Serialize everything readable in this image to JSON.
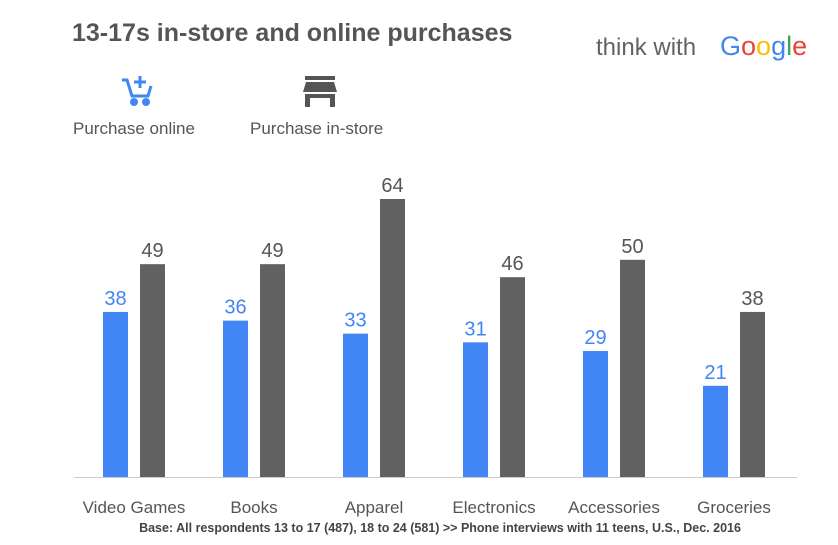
{
  "brand": [
    "think with",
    "Google"
  ],
  "chart_data": {
    "type": "bar",
    "title": "13-17s in-store and online purchases",
    "categories": [
      "Video Games",
      "Books",
      "Apparel",
      "Electronics",
      "Accessories",
      "Groceries"
    ],
    "series": [
      {
        "name": "Purchase online",
        "color": "#4285f4",
        "values": [
          38,
          36,
          33,
          31,
          29,
          21
        ]
      },
      {
        "name": "Purchase in-store",
        "color": "#616161",
        "values": [
          49,
          49,
          64,
          46,
          50,
          38
        ]
      }
    ],
    "note": "Base: All respondents 13 to 17 (487), 18 to 24 (581) >> Phone interviews with 11 teens, U.S., Dec. 2016"
  }
}
